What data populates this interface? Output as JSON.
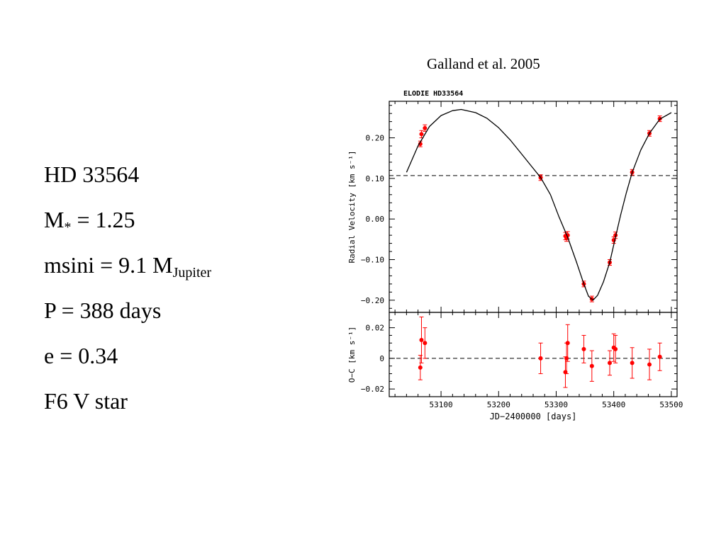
{
  "slide": {
    "citation": "Galland et al. 2005",
    "star_name": "HD 33564",
    "mass_label": "M",
    "mass_sub": "*",
    "mass_value": " = 1.25",
    "msini_label": "msini = 9.1 M",
    "msini_sub": "Jupiter",
    "period_line": "P = 388 days",
    "ecc_line": "e =  0.34",
    "spectral_line": "F6 V star"
  },
  "chart_data": [
    {
      "type": "scatter",
      "title": "ELODIE HD33564",
      "xlabel": "",
      "ylabel": "Radial Velocity [km s⁻¹]",
      "xlim": [
        53010,
        53510
      ],
      "ylim": [
        -0.23,
        0.29
      ],
      "yticks": [
        0.2,
        0.1,
        0.0,
        -0.1,
        -0.2
      ],
      "ytick_labels": [
        "0.20",
        "0.10",
        "0.00",
        "−0.10",
        "−0.20"
      ],
      "xticks": [
        53100,
        53200,
        53300,
        53400,
        53500
      ],
      "reference_line": 0.107,
      "series": [
        {
          "kind": "points_with_errors",
          "color": "#ff0000",
          "points": [
            {
              "x": 53064,
              "y": 0.185,
              "err": 0.007
            },
            {
              "x": 53066,
              "y": 0.209,
              "err": 0.009
            },
            {
              "x": 53072,
              "y": 0.224,
              "err": 0.008
            },
            {
              "x": 53273,
              "y": 0.102,
              "err": 0.007
            },
            {
              "x": 53316,
              "y": -0.042,
              "err": 0.009
            },
            {
              "x": 53318,
              "y": -0.047,
              "err": 0.008
            },
            {
              "x": 53320,
              "y": -0.04,
              "err": 0.009
            },
            {
              "x": 53348,
              "y": -0.16,
              "err": 0.007
            },
            {
              "x": 53362,
              "y": -0.197,
              "err": 0.007
            },
            {
              "x": 53393,
              "y": -0.107,
              "err": 0.007
            },
            {
              "x": 53400,
              "y": -0.052,
              "err": 0.008
            },
            {
              "x": 53403,
              "y": -0.04,
              "err": 0.008
            },
            {
              "x": 53432,
              "y": 0.115,
              "err": 0.007
            },
            {
              "x": 53462,
              "y": 0.211,
              "err": 0.007
            },
            {
              "x": 53480,
              "y": 0.247,
              "err": 0.007
            }
          ]
        },
        {
          "kind": "model_curve",
          "color": "#000000",
          "points": [
            {
              "x": 53040,
              "y": 0.115
            },
            {
              "x": 53060,
              "y": 0.18
            },
            {
              "x": 53080,
              "y": 0.228
            },
            {
              "x": 53100,
              "y": 0.255
            },
            {
              "x": 53120,
              "y": 0.267
            },
            {
              "x": 53135,
              "y": 0.27
            },
            {
              "x": 53160,
              "y": 0.262
            },
            {
              "x": 53180,
              "y": 0.248
            },
            {
              "x": 53200,
              "y": 0.225
            },
            {
              "x": 53220,
              "y": 0.195
            },
            {
              "x": 53240,
              "y": 0.16
            },
            {
              "x": 53260,
              "y": 0.125
            },
            {
              "x": 53273,
              "y": 0.102
            },
            {
              "x": 53290,
              "y": 0.06
            },
            {
              "x": 53305,
              "y": 0.005
            },
            {
              "x": 53320,
              "y": -0.045
            },
            {
              "x": 53335,
              "y": -0.105
            },
            {
              "x": 53348,
              "y": -0.16
            },
            {
              "x": 53356,
              "y": -0.19
            },
            {
              "x": 53364,
              "y": -0.2
            },
            {
              "x": 53372,
              "y": -0.188
            },
            {
              "x": 53382,
              "y": -0.155
            },
            {
              "x": 53393,
              "y": -0.107
            },
            {
              "x": 53403,
              "y": -0.045
            },
            {
              "x": 53412,
              "y": 0.01
            },
            {
              "x": 53422,
              "y": 0.065
            },
            {
              "x": 53432,
              "y": 0.115
            },
            {
              "x": 53447,
              "y": 0.17
            },
            {
              "x": 53462,
              "y": 0.211
            },
            {
              "x": 53480,
              "y": 0.246
            },
            {
              "x": 53500,
              "y": 0.262
            }
          ]
        }
      ]
    },
    {
      "type": "scatter",
      "title": "",
      "xlabel": "JD−2400000 [days]",
      "ylabel": "O−C [km s⁻¹]",
      "xlim": [
        53010,
        53510
      ],
      "ylim": [
        -0.025,
        0.03
      ],
      "yticks": [
        0.02,
        0,
        -0.02
      ],
      "ytick_labels": [
        "0.02",
        "0",
        "−0.02"
      ],
      "xticks": [
        53100,
        53200,
        53300,
        53400,
        53500
      ],
      "xtick_labels": [
        "53100",
        "53200",
        "53300",
        "53400",
        "53500"
      ],
      "reference_line": 0,
      "series": [
        {
          "kind": "points_with_errors",
          "color": "#ff0000",
          "points": [
            {
              "x": 53064,
              "y": -0.006,
              "err": 0.008
            },
            {
              "x": 53066,
              "y": 0.012,
              "err": 0.015
            },
            {
              "x": 53072,
              "y": 0.01,
              "err": 0.01
            },
            {
              "x": 53273,
              "y": 0.0,
              "err": 0.01
            },
            {
              "x": 53316,
              "y": -0.009,
              "err": 0.01
            },
            {
              "x": 53318,
              "y": 0.0,
              "err": 0.01
            },
            {
              "x": 53320,
              "y": 0.01,
              "err": 0.012
            },
            {
              "x": 53348,
              "y": 0.006,
              "err": 0.009
            },
            {
              "x": 53362,
              "y": -0.005,
              "err": 0.01
            },
            {
              "x": 53393,
              "y": -0.003,
              "err": 0.008
            },
            {
              "x": 53400,
              "y": 0.007,
              "err": 0.009
            },
            {
              "x": 53403,
              "y": 0.006,
              "err": 0.009
            },
            {
              "x": 53432,
              "y": -0.003,
              "err": 0.01
            },
            {
              "x": 53462,
              "y": -0.004,
              "err": 0.01
            },
            {
              "x": 53480,
              "y": 0.001,
              "err": 0.009
            }
          ]
        }
      ]
    }
  ]
}
